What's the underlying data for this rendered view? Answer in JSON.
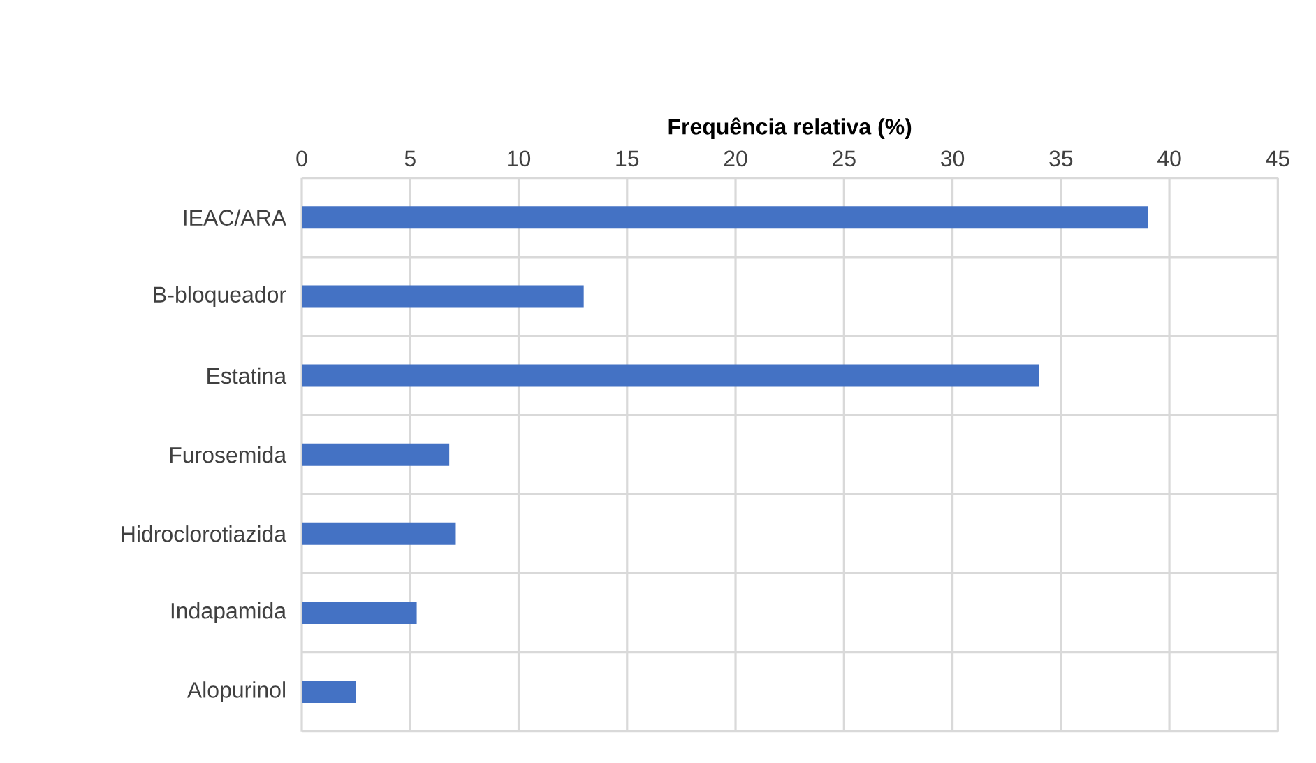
{
  "chart_data": {
    "type": "bar",
    "orientation": "horizontal",
    "xlabel": "Frequência relativa (%)",
    "categories": [
      "IEAC/ARA",
      "B-bloqueador",
      "Estatina",
      "Furosemida",
      "Hidroclorotiazida",
      "Indapamida",
      "Alopurinol"
    ],
    "values": [
      39,
      13,
      34,
      6.8,
      7.1,
      5.3,
      2.5
    ],
    "color": "#4472c4",
    "xlim": [
      0,
      45
    ],
    "xticks": [
      0,
      5,
      10,
      15,
      20,
      25,
      30,
      35,
      40,
      45
    ],
    "grid": true
  }
}
